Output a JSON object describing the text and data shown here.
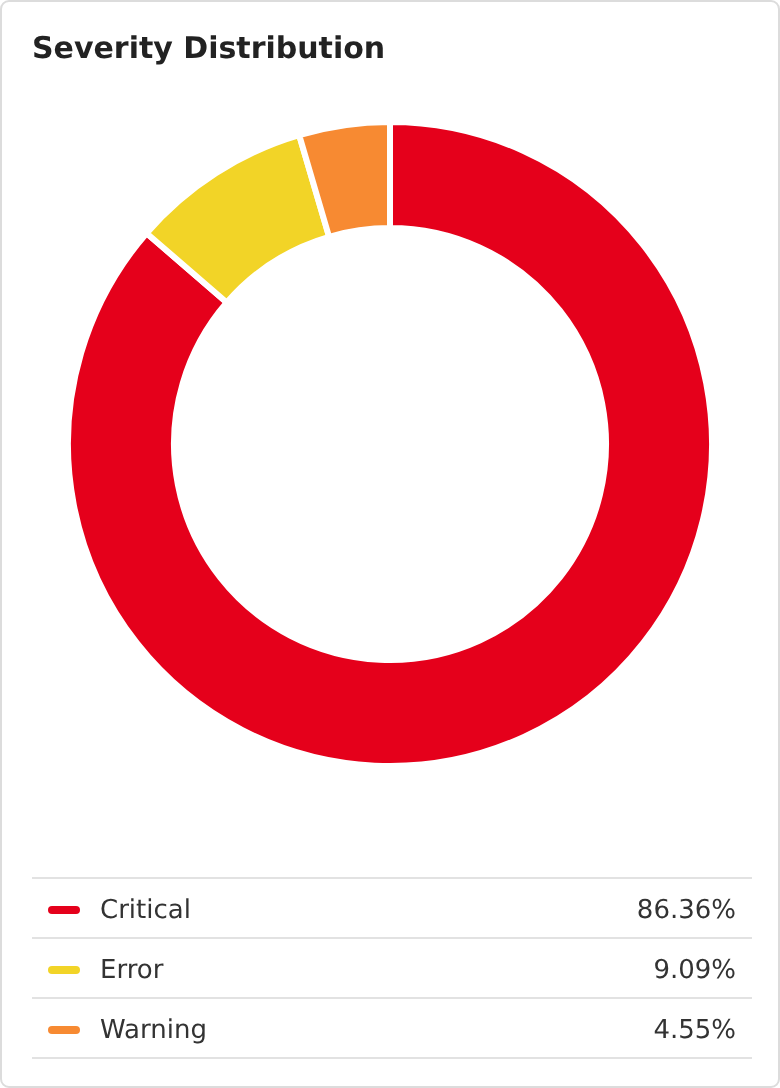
{
  "chart_data": {
    "type": "donut",
    "title": "Severity Distribution",
    "categories": [
      "Critical",
      "Error",
      "Warning"
    ],
    "values": [
      86.36,
      9.09,
      4.55
    ],
    "colors": [
      "#e5001b",
      "#f2d427",
      "#f78a32"
    ],
    "value_labels": [
      "86.36%",
      "9.09%",
      "4.55%"
    ],
    "legend": "bottom"
  }
}
